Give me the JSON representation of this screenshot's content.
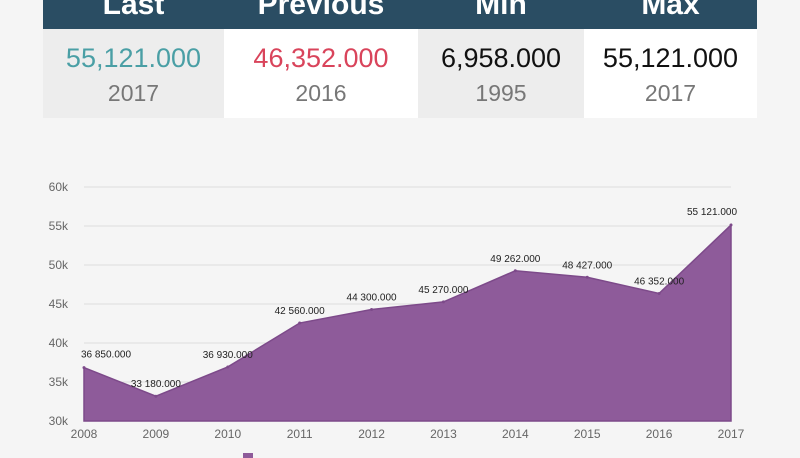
{
  "stats": {
    "columns": [
      {
        "header": "Last",
        "value": "55,121.000",
        "year": "2017",
        "value_color": "#4a9fa5",
        "bg": "#ededed"
      },
      {
        "header": "Previous",
        "value": "46,352.000",
        "year": "2016",
        "value_color": "#d9445b",
        "bg": "#ffffff"
      },
      {
        "header": "Min",
        "value": "6,958.000",
        "year": "1995",
        "value_color": "#111111",
        "bg": "#ededed"
      },
      {
        "header": "Max",
        "value": "55,121.000",
        "year": "2017",
        "value_color": "#111111",
        "bg": "#ffffff"
      }
    ],
    "header_bg": "#2a4d63"
  },
  "chart_data": {
    "type": "area",
    "x": [
      "2008",
      "2009",
      "2010",
      "2011",
      "2012",
      "2013",
      "2014",
      "2015",
      "2016",
      "2017"
    ],
    "values": [
      36850,
      33180,
      36930,
      42560,
      44300,
      45270,
      49262,
      48427,
      46352,
      55121
    ],
    "data_labels": [
      "36 850.000",
      "33 180.000",
      "36 930.000",
      "42 560.000",
      "44 300.000",
      "45 270.000",
      "49 262.000",
      "48 427.000",
      "46 352.000",
      "55 121.000"
    ],
    "y_ticks": [
      {
        "value": 30000,
        "label": "30k"
      },
      {
        "value": 35000,
        "label": "35k"
      },
      {
        "value": 40000,
        "label": "40k"
      },
      {
        "value": 45000,
        "label": "45k"
      },
      {
        "value": 50000,
        "label": "50k"
      },
      {
        "value": 55000,
        "label": "55k"
      },
      {
        "value": 60000,
        "label": "60k"
      }
    ],
    "ylim": [
      30000,
      60000
    ],
    "grid": true,
    "fill_color": "#8e5b9a",
    "legend": {
      "placement": "bottom"
    }
  }
}
